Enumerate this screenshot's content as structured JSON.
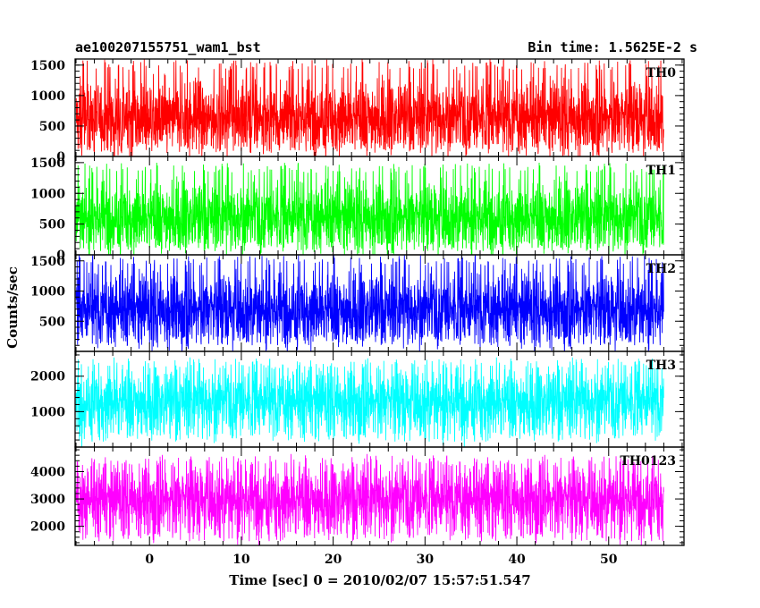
{
  "header": {
    "title_left": "ae100207155751_wam1_bst",
    "title_right": "Bin time: 1.5625E-2 s"
  },
  "chart_data": {
    "type": "line",
    "xlabel": "Time [sec] 0 = 2010/02/07 15:57:51.547",
    "ylabel": "Counts/sec",
    "xlim": [
      -8.1,
      58.2
    ],
    "x_ticks": [
      0,
      10,
      20,
      30,
      40,
      50
    ],
    "x_range_data": [
      -8.0,
      56.0
    ],
    "bin_time": 0.015625,
    "panels": [
      {
        "name": "TH0",
        "color": "#ff0000",
        "ylim": [
          0,
          1600
        ],
        "y_ticks": [
          0,
          500,
          1000,
          1500
        ],
        "mean": 650,
        "low": 80,
        "high": 1600
      },
      {
        "name": "TH1",
        "color": "#00ff00",
        "ylim": [
          0,
          1600
        ],
        "y_ticks": [
          0,
          500,
          1000,
          1500
        ],
        "mean": 620,
        "low": 60,
        "high": 1500
      },
      {
        "name": "TH2",
        "color": "#0000ff",
        "ylim": [
          0,
          1600
        ],
        "y_ticks": [
          500,
          1000,
          1500
        ],
        "mean": 700,
        "low": 100,
        "high": 1600
      },
      {
        "name": "TH3",
        "color": "#00ffff",
        "ylim": [
          0,
          2700
        ],
        "y_ticks": [
          1000,
          2000
        ],
        "mean": 1300,
        "low": 150,
        "high": 2500
      },
      {
        "name": "TH0123",
        "color": "#ff00ff",
        "ylim": [
          1300,
          4900
        ],
        "y_ticks": [
          2000,
          3000,
          4000
        ],
        "mean": 3000,
        "low": 1450,
        "high": 4600
      }
    ]
  }
}
